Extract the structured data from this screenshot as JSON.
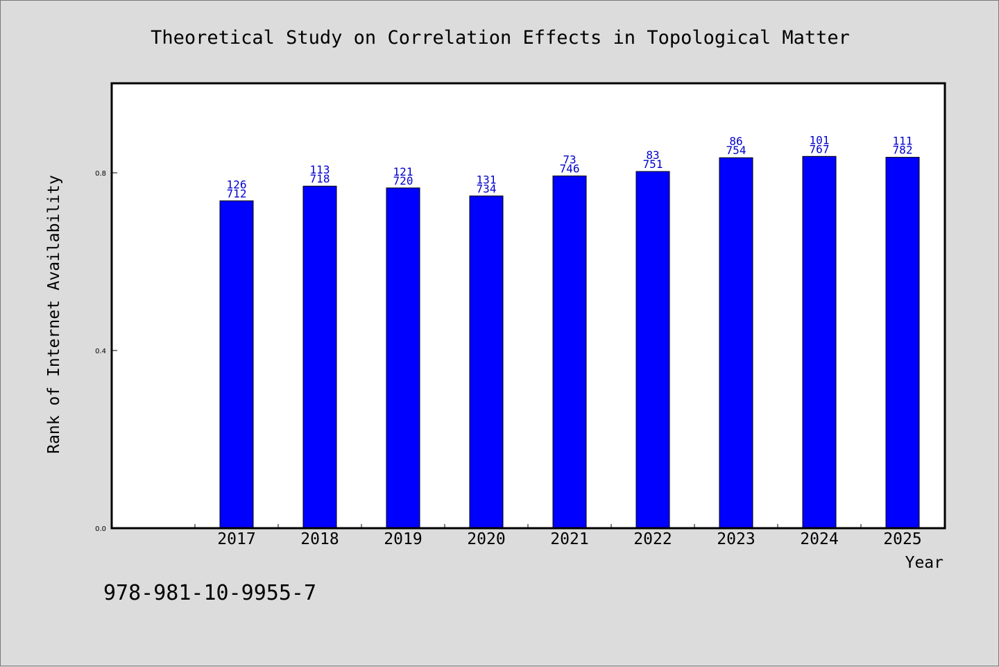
{
  "chart_data": {
    "type": "bar",
    "title": "Theoretical Study on Correlation Effects in Topological Matter",
    "xlabel": "Year",
    "ylabel": "Rank of Internet Availability",
    "categories": [
      "2017",
      "2018",
      "2019",
      "2020",
      "2021",
      "2022",
      "2023",
      "2024",
      "2025"
    ],
    "series": [
      {
        "values": [
          0.737,
          0.77,
          0.766,
          0.748,
          0.793,
          0.803,
          0.834,
          0.837,
          0.835
        ],
        "labels_top": [
          "126",
          "113",
          "121",
          "131",
          "73",
          "83",
          "86",
          "101",
          "111"
        ],
        "labels_bottom": [
          "712",
          "718",
          "720",
          "734",
          "746",
          "751",
          "754",
          "767",
          "782"
        ],
        "color": "#0000ff"
      }
    ],
    "yticks": [
      "0.0",
      "0.4",
      "0.8"
    ],
    "ylim": [
      0,
      1.0
    ],
    "grid": false,
    "background": "#dcdcdc",
    "plot_background": "#ffffff",
    "label_color": "#0000cc"
  },
  "footer": {
    "isbn": "978-981-10-9955-7"
  }
}
